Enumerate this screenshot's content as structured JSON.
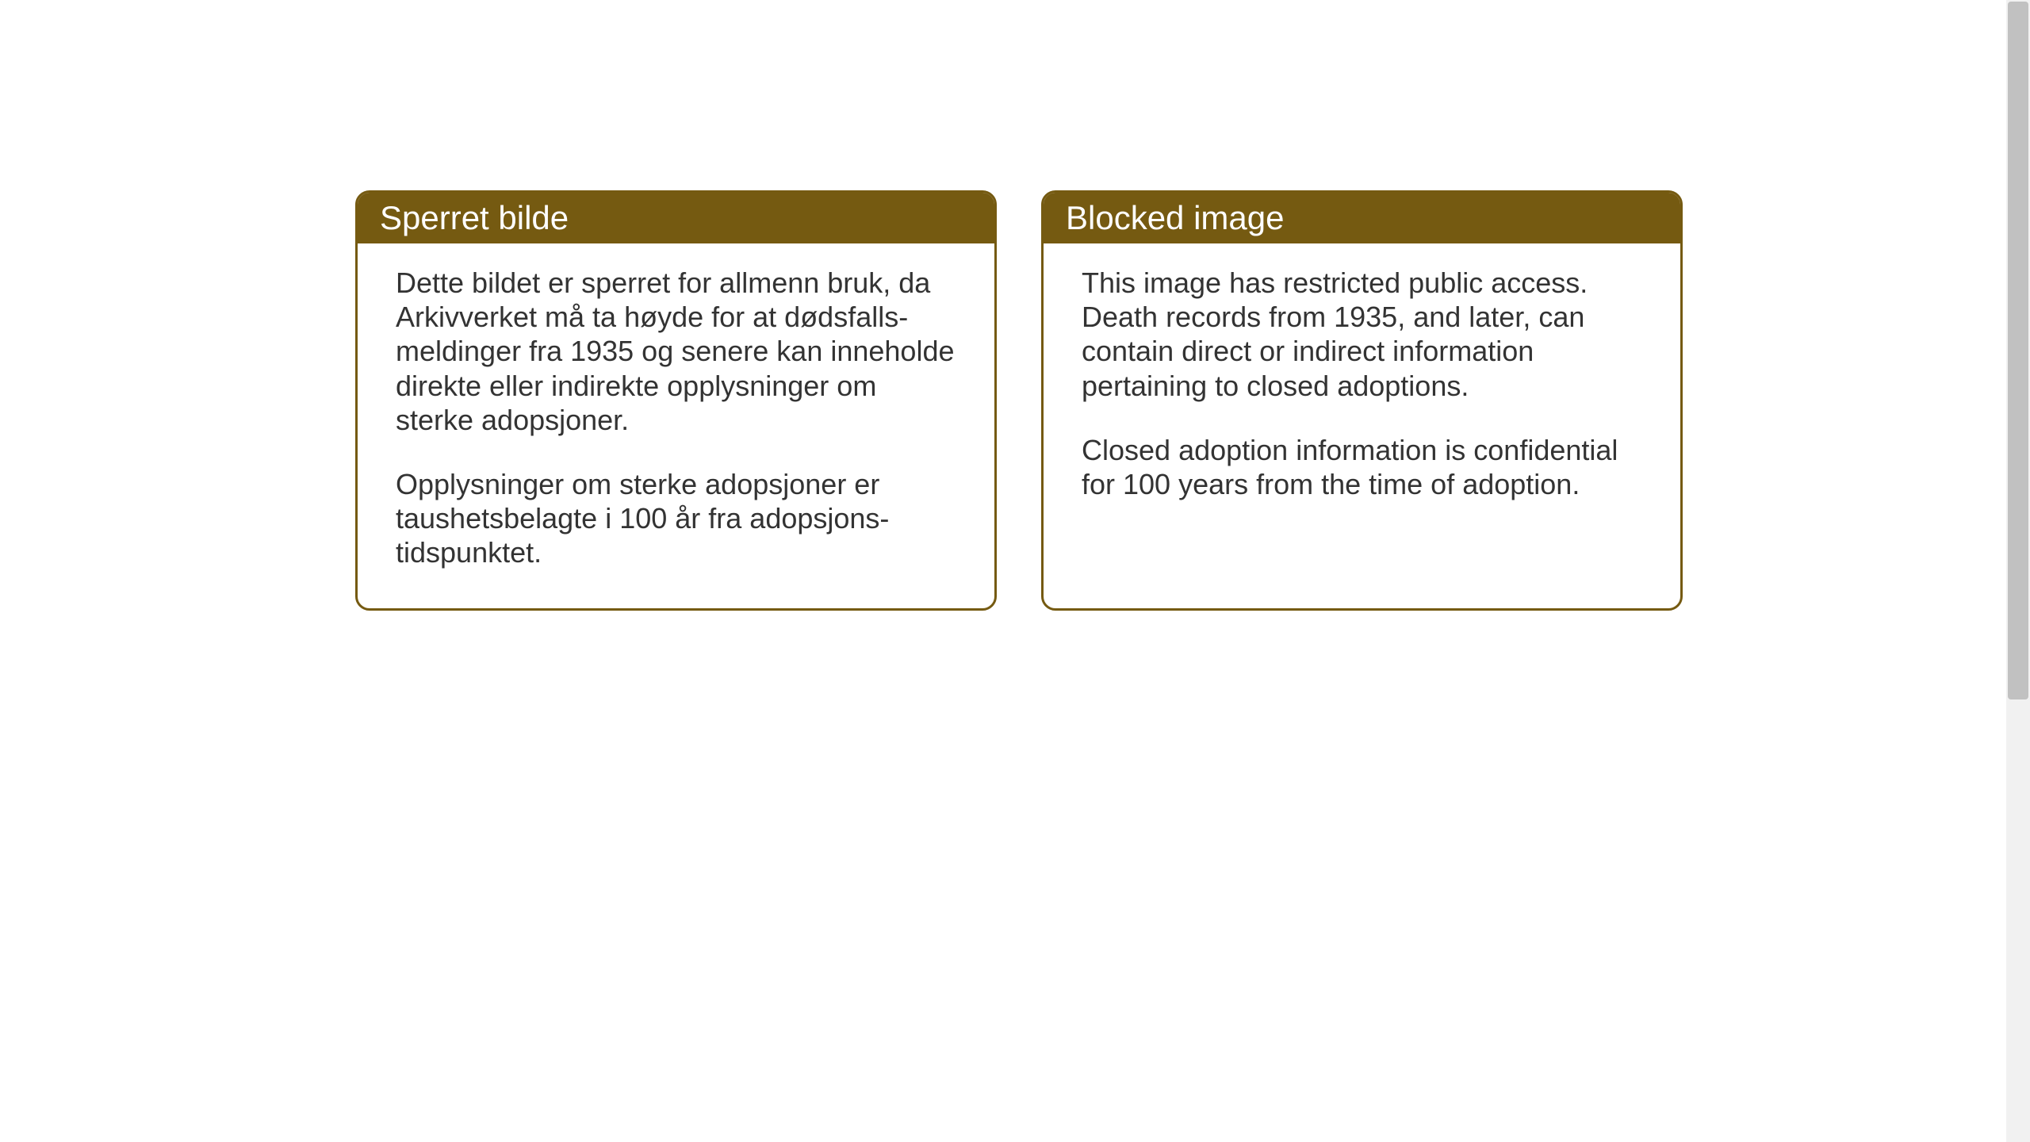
{
  "layout": {
    "background_color": "#ffffff",
    "card_border_color": "#755a11",
    "card_border_width": 3,
    "card_border_radius": 18,
    "header_background_color": "#755a11",
    "header_text_color": "#ffffff",
    "header_fontsize": 42,
    "body_text_color": "#333333",
    "body_fontsize": 36,
    "gap_between_cards": 56
  },
  "cards": [
    {
      "title": "Sperret bilde",
      "paragraphs": [
        "Dette bildet er sperret for allmenn bruk, da Arkivverket må ta høyde for at dødsfalls-meldinger fra 1935 og senere kan inneholde direkte eller indirekte opplysninger om sterke adopsjoner.",
        "Opplysninger om sterke adopsjoner er taushetsbelagte i 100 år fra adopsjons-tidspunktet."
      ]
    },
    {
      "title": "Blocked image",
      "paragraphs": [
        "This image has restricted public access. Death records from 1935, and later, can contain direct or indirect information pertaining to closed adoptions.",
        "Closed adoption information is confidential for 100 years from the time of adoption."
      ]
    }
  ]
}
